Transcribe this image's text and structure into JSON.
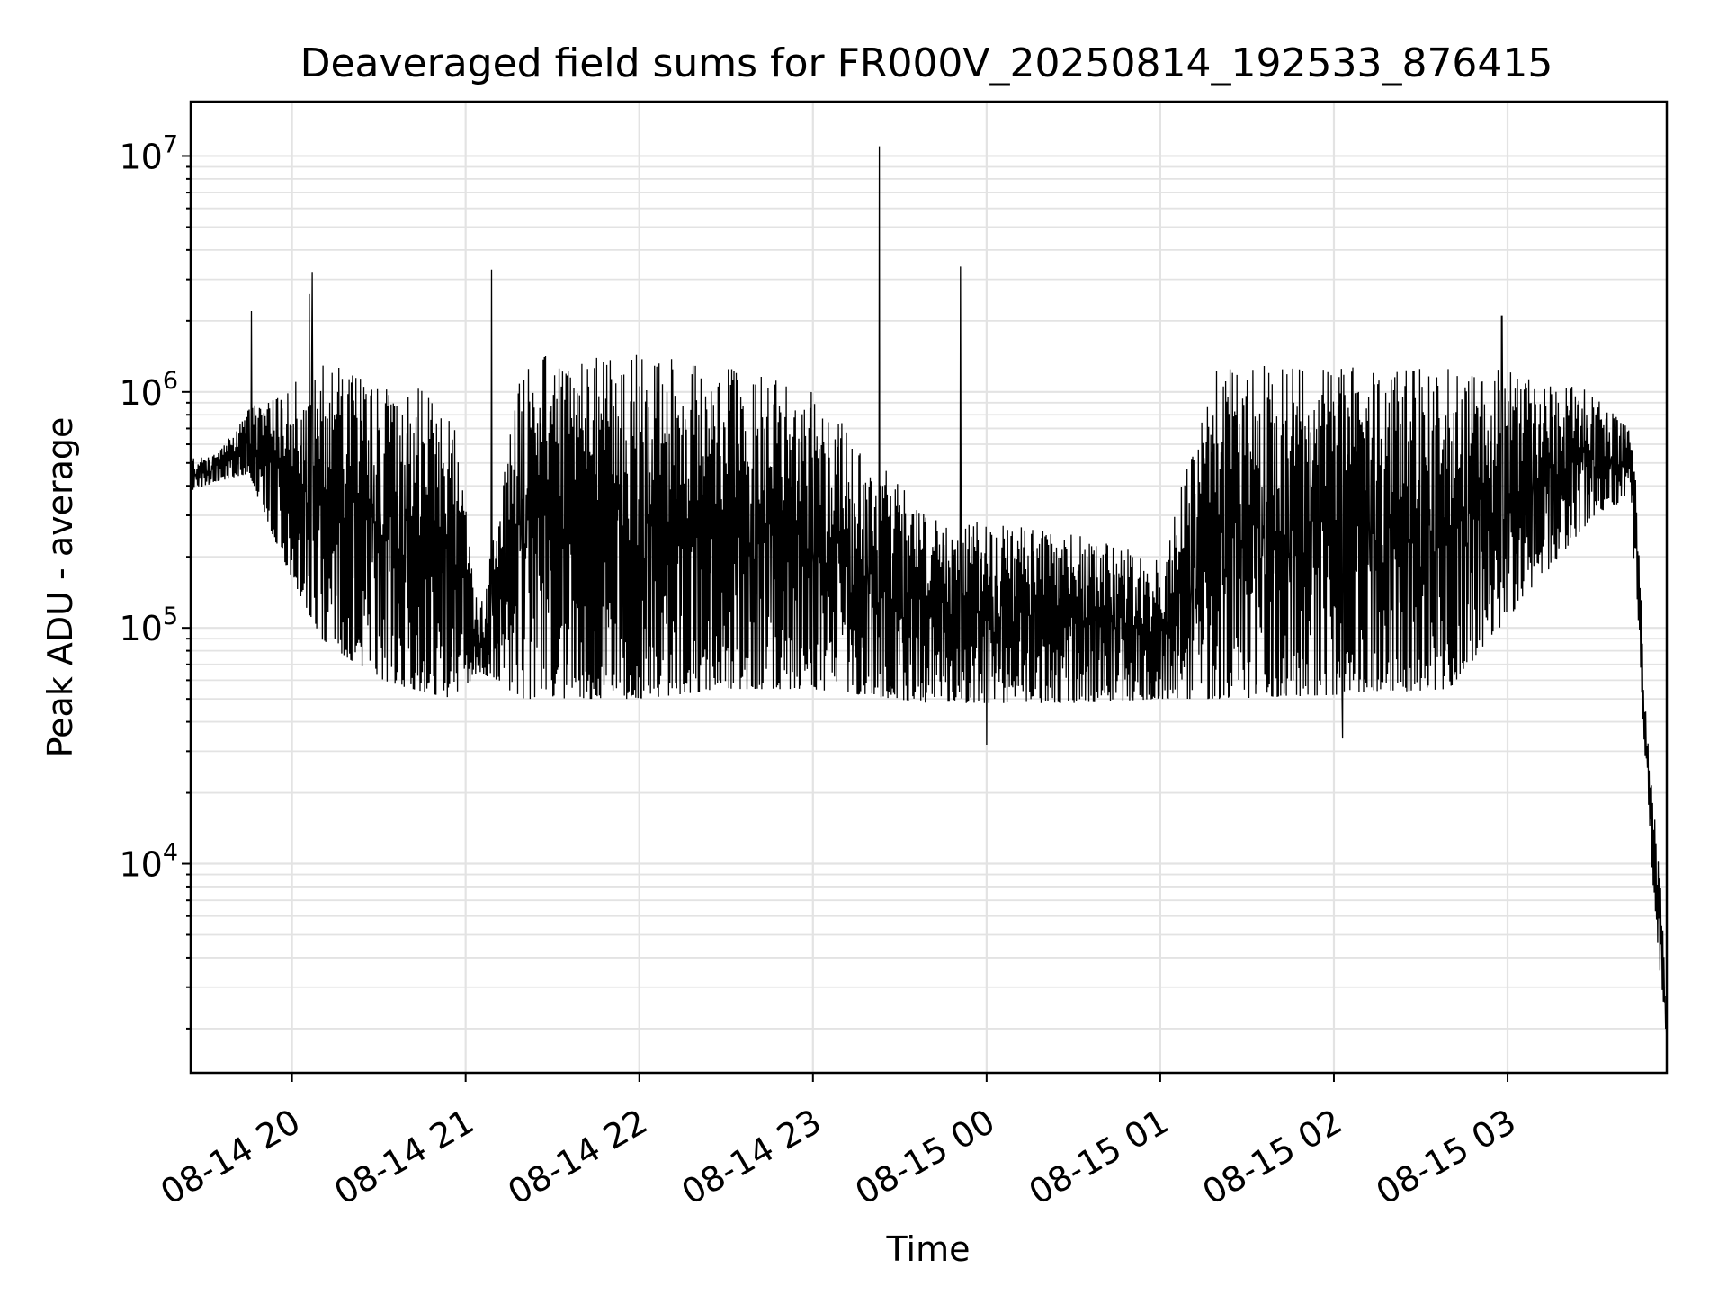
{
  "chart_data": {
    "type": "line",
    "title": "Deaveraged field sums for FR000V_20250814_192533_876415",
    "xlabel": "Time",
    "ylabel": "Peak ADU - average",
    "y_scale": "log",
    "ylim": [
      1300,
      17000000
    ],
    "xlim": [
      "2025-08-14 19:25",
      "2025-08-15 03:55"
    ],
    "grid": true,
    "line_color": "#000000",
    "x_ticks": [
      {
        "value": "2025-08-14 20:00",
        "label": "08-14 20"
      },
      {
        "value": "2025-08-14 21:00",
        "label": "08-14 21"
      },
      {
        "value": "2025-08-14 22:00",
        "label": "08-14 22"
      },
      {
        "value": "2025-08-14 23:00",
        "label": "08-14 23"
      },
      {
        "value": "2025-08-15 00:00",
        "label": "08-15 00"
      },
      {
        "value": "2025-08-15 01:00",
        "label": "08-15 01"
      },
      {
        "value": "2025-08-15 02:00",
        "label": "08-15 02"
      },
      {
        "value": "2025-08-15 03:00",
        "label": "08-15 03"
      }
    ],
    "y_ticks": [
      {
        "value": 10000,
        "base": "10",
        "exp": "4"
      },
      {
        "value": 100000,
        "base": "10",
        "exp": "5"
      },
      {
        "value": 1000000,
        "base": "10",
        "exp": "6"
      },
      {
        "value": 10000000,
        "base": "10",
        "exp": "7"
      }
    ],
    "series": [
      {
        "envelope": [
          {
            "x": "2025-08-14 19:25",
            "low": 380000,
            "high": 520000
          },
          {
            "x": "2025-08-14 19:35",
            "low": 420000,
            "high": 560000
          },
          {
            "x": "2025-08-14 19:45",
            "low": 450000,
            "high": 850000
          },
          {
            "x": "2025-08-14 19:55",
            "low": 220000,
            "high": 1000000
          },
          {
            "x": "2025-08-14 20:10",
            "low": 90000,
            "high": 1300000
          },
          {
            "x": "2025-08-14 20:30",
            "low": 60000,
            "high": 1350000
          },
          {
            "x": "2025-08-14 20:55",
            "low": 50000,
            "high": 900000
          },
          {
            "x": "2025-08-14 21:05",
            "low": 65000,
            "high": 120000
          },
          {
            "x": "2025-08-14 21:20",
            "low": 50000,
            "high": 1400000
          },
          {
            "x": "2025-08-14 22:00",
            "low": 50000,
            "high": 1500000
          },
          {
            "x": "2025-08-14 22:30",
            "low": 55000,
            "high": 1300000
          },
          {
            "x": "2025-08-14 23:00",
            "low": 55000,
            "high": 1000000
          },
          {
            "x": "2025-08-14 23:40",
            "low": 48000,
            "high": 300000
          },
          {
            "x": "2025-08-15 00:30",
            "low": 48000,
            "high": 250000
          },
          {
            "x": "2025-08-15 01:00",
            "low": 50000,
            "high": 200000
          },
          {
            "x": "2025-08-15 01:20",
            "low": 50000,
            "high": 1300000
          },
          {
            "x": "2025-08-15 02:00",
            "low": 52000,
            "high": 1300000
          },
          {
            "x": "2025-08-15 02:40",
            "low": 55000,
            "high": 1300000
          },
          {
            "x": "2025-08-15 03:00",
            "low": 110000,
            "high": 1300000
          },
          {
            "x": "2025-08-15 03:30",
            "low": 300000,
            "high": 1000000
          },
          {
            "x": "2025-08-15 03:42",
            "low": 350000,
            "high": 700000
          },
          {
            "x": "2025-08-15 03:45",
            "low": 120000,
            "high": 400000
          },
          {
            "x": "2025-08-15 03:47",
            "low": 35000,
            "high": 60000
          },
          {
            "x": "2025-08-15 03:50",
            "low": 9000,
            "high": 20000
          },
          {
            "x": "2025-08-15 03:53",
            "low": 3000,
            "high": 9000
          },
          {
            "x": "2025-08-15 03:55",
            "low": 1600,
            "high": 2000
          }
        ],
        "spikes": [
          {
            "x": "2025-08-14 19:46",
            "y": 2200000
          },
          {
            "x": "2025-08-14 20:06",
            "y": 2600000
          },
          {
            "x": "2025-08-14 20:07",
            "y": 3200000
          },
          {
            "x": "2025-08-14 21:09",
            "y": 3300000
          },
          {
            "x": "2025-08-14 23:23",
            "y": 11000000
          },
          {
            "x": "2025-08-14 23:51",
            "y": 3400000
          },
          {
            "x": "2025-08-15 02:58",
            "y": 2100000
          }
        ],
        "dips": [
          {
            "x": "2025-08-15 00:00",
            "y": 32000
          },
          {
            "x": "2025-08-15 02:03",
            "y": 34000
          }
        ]
      }
    ]
  }
}
